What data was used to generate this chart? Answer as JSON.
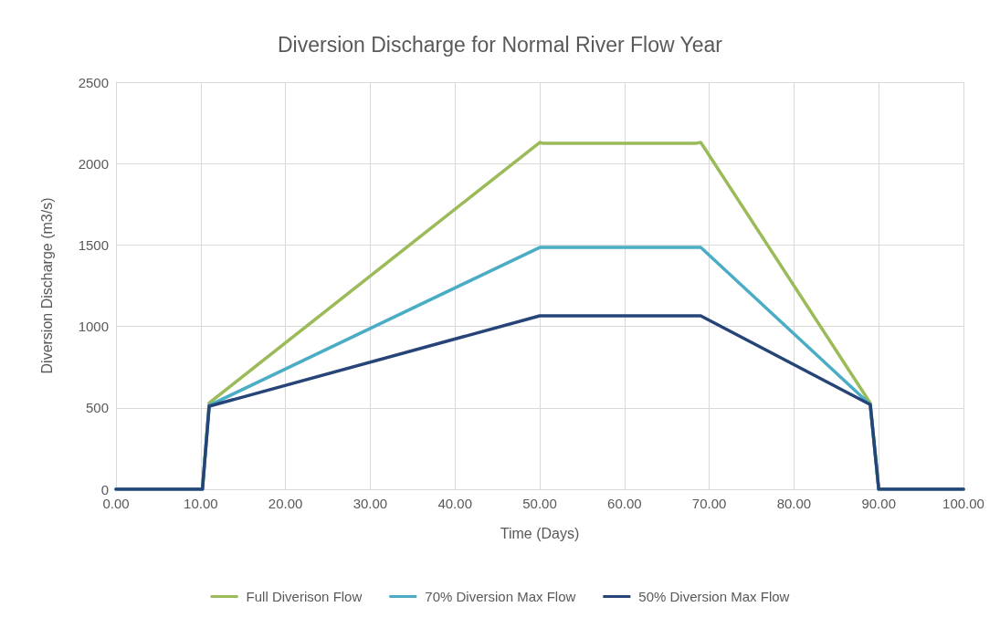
{
  "chart_data": {
    "type": "line",
    "title": "Diversion Discharge for Normal River Flow Year",
    "xlabel": "Time (Days)",
    "ylabel": "Diversion Discharge (m3/s)",
    "xlim": [
      0,
      100
    ],
    "xticks": [
      {
        "value": 0,
        "label": "0.00"
      },
      {
        "value": 10,
        "label": "10.00"
      },
      {
        "value": 20,
        "label": "20.00"
      },
      {
        "value": 30,
        "label": "30.00"
      },
      {
        "value": 40,
        "label": "40.00"
      },
      {
        "value": 50,
        "label": "50.00"
      },
      {
        "value": 60,
        "label": "60.00"
      },
      {
        "value": 70,
        "label": "70.00"
      },
      {
        "value": 80,
        "label": "80.00"
      },
      {
        "value": 90,
        "label": "90.00"
      },
      {
        "value": 100,
        "label": "100.00"
      }
    ],
    "ylim": [
      0,
      2500
    ],
    "yticks": [
      0,
      500,
      1000,
      1500,
      2000,
      2500
    ],
    "grid": true,
    "legend": "bottom",
    "marker": "none",
    "line_style": "solid",
    "series": [
      {
        "name": "Full Diverison Flow",
        "color": "#9bbb59",
        "x": [
          0,
          9.5,
          10.2,
          11,
          50,
          50.3,
          68.5,
          69,
          89,
          90,
          100
        ],
        "values": [
          0,
          0,
          0,
          530,
          2130,
          2125,
          2125,
          2130,
          530,
          0,
          0
        ]
      },
      {
        "name": "70% Diversion Max Flow",
        "color": "#4bacc6",
        "x": [
          0,
          9.5,
          10.2,
          11,
          50,
          50.3,
          68.5,
          69,
          89,
          90,
          100
        ],
        "values": [
          0,
          0,
          0,
          515,
          1485,
          1485,
          1485,
          1485,
          520,
          0,
          0
        ]
      },
      {
        "name": "50% Diversion Max Flow",
        "color": "#264478",
        "x": [
          0,
          9.5,
          10.2,
          11,
          50,
          50.3,
          68.5,
          69,
          89,
          90,
          100
        ],
        "values": [
          0,
          0,
          0,
          510,
          1065,
          1065,
          1065,
          1065,
          520,
          0,
          0
        ]
      }
    ]
  }
}
